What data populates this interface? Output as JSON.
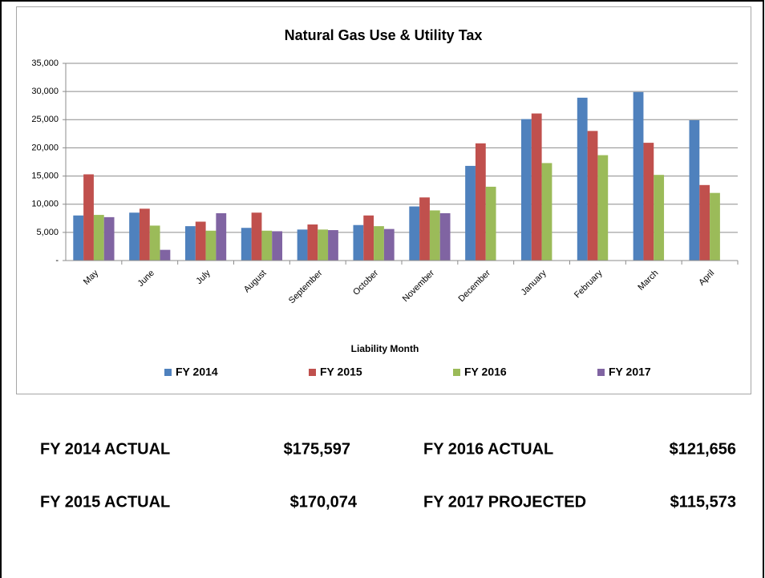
{
  "chart_data": {
    "type": "bar",
    "title": "Natural Gas Use & Utility Tax",
    "x_label": "Liability Month",
    "categories": [
      "May",
      "June",
      "July",
      "August",
      "September",
      "October",
      "November",
      "December",
      "January",
      "February",
      "March",
      "April"
    ],
    "series": [
      {
        "name": "FY 2014",
        "color": "#4f81bd",
        "values": [
          8000,
          8500,
          6100,
          5800,
          5500,
          6300,
          9600,
          16800,
          25100,
          28900,
          29900,
          24900
        ]
      },
      {
        "name": "FY 2015",
        "color": "#c0504d",
        "values": [
          15300,
          9200,
          6900,
          8500,
          6400,
          8000,
          11200,
          20800,
          26100,
          23000,
          20900,
          13400
        ]
      },
      {
        "name": "FY 2016",
        "color": "#9bbb59",
        "values": [
          8100,
          6200,
          5300,
          5300,
          5500,
          6100,
          8900,
          13100,
          17300,
          18700,
          15200,
          12000
        ]
      },
      {
        "name": "FY 2017",
        "color": "#8064a2",
        "values": [
          7700,
          1900,
          8400,
          5200,
          5400,
          5600,
          8400,
          null,
          null,
          null,
          null,
          null
        ]
      }
    ],
    "ylim": [
      0,
      35000
    ],
    "yticks": [
      {
        "value": 0,
        "label": "-"
      },
      {
        "value": 5000,
        "label": "5,000"
      },
      {
        "value": 10000,
        "label": "10,000"
      },
      {
        "value": 15000,
        "label": "15,000"
      },
      {
        "value": 20000,
        "label": "20,000"
      },
      {
        "value": 25000,
        "label": "25,000"
      },
      {
        "value": 30000,
        "label": "30,000"
      },
      {
        "value": 35000,
        "label": "35,000"
      }
    ],
    "grid": true,
    "legend": "bottom"
  },
  "summary": [
    {
      "label": "FY 2014 ACTUAL",
      "value": "$175,597"
    },
    {
      "label": "FY 2016 ACTUAL",
      "value": "$121,656"
    },
    {
      "label": "FY 2015 ACTUAL",
      "value": "$170,074"
    },
    {
      "label": "FY 2017 PROJECTED",
      "value": "$115,573"
    }
  ]
}
